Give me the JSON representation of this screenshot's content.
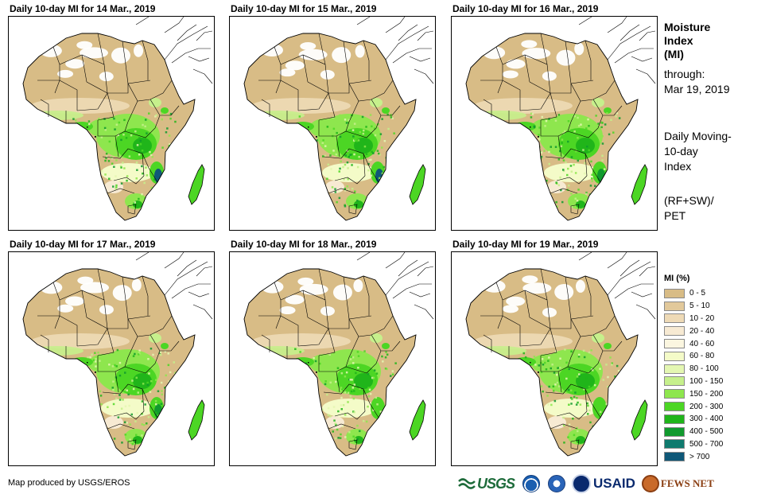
{
  "panels": [
    {
      "title": "Daily 10-day MI for 14 Mar., 2019"
    },
    {
      "title": "Daily 10-day MI for 15 Mar., 2019"
    },
    {
      "title": "Daily 10-day MI for 16 Mar., 2019"
    },
    {
      "title": "Daily 10-day MI for 17 Mar., 2019"
    },
    {
      "title": "Daily 10-day MI for 18 Mar., 2019"
    },
    {
      "title": "Daily 10-day MI for 19 Mar., 2019"
    }
  ],
  "side": {
    "title_lines": [
      "Moisture",
      "Index",
      "(MI)"
    ],
    "through_label": "through:",
    "through_date": "Mar 19, 2019",
    "description_lines": [
      "Daily Moving-",
      "10-day",
      "Index"
    ],
    "formula_lines": [
      "(RF+SW)/",
      "PET"
    ]
  },
  "legend": {
    "title": "MI (%)",
    "items": [
      {
        "label": "0 - 5",
        "color": "#d8bc86"
      },
      {
        "label": "5 - 10",
        "color": "#e2c99b"
      },
      {
        "label": "10 - 20",
        "color": "#eedab6"
      },
      {
        "label": "20 - 40",
        "color": "#f7ead3"
      },
      {
        "label": "40 - 60",
        "color": "#fbf6e0"
      },
      {
        "label": "60 - 80",
        "color": "#f4fbc8"
      },
      {
        "label": "80 - 100",
        "color": "#e4f7b2"
      },
      {
        "label": "100 - 150",
        "color": "#c6f08c"
      },
      {
        "label": "150 - 200",
        "color": "#8ee64e"
      },
      {
        "label": "200 - 300",
        "color": "#4cd624"
      },
      {
        "label": "300 - 400",
        "color": "#20b51a"
      },
      {
        "label": "400 - 500",
        "color": "#119a2e"
      },
      {
        "label": "500 - 700",
        "color": "#0f7a6e"
      },
      {
        "label": "> 700",
        "color": "#0f5878"
      }
    ]
  },
  "credit": "Map produced by USGS/EROS",
  "logos": {
    "usgs": "USGS",
    "usaid": "USAID",
    "fews": "FEWS NET"
  }
}
